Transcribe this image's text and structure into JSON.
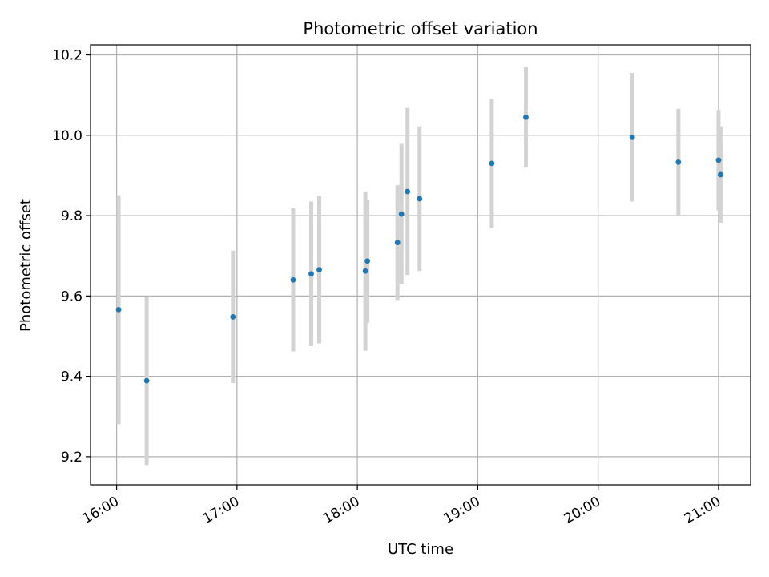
{
  "chart_data": {
    "type": "scatter",
    "title": "Photometric offset variation",
    "xlabel": "UTC time",
    "ylabel": "Photometric offset",
    "x_tick_labels": [
      "16:00",
      "17:00",
      "18:00",
      "19:00",
      "20:00",
      "21:00"
    ],
    "x_ticks": [
      "16:00",
      "17:00",
      "18:00",
      "19:00",
      "20:00",
      "21:00"
    ],
    "y_ticks": [
      9.2,
      9.4,
      9.6,
      9.8,
      10.0,
      10.2
    ],
    "y_tick_labels": [
      "9.2",
      "9.4",
      "9.6",
      "9.8",
      "10.0",
      "10.2"
    ],
    "xlim": [
      "15:47",
      "21:16"
    ],
    "ylim": [
      9.13,
      10.225
    ],
    "grid": true,
    "point_color": "#1f77b4",
    "errorbar_color": "#d3d3d3",
    "points": [
      {
        "t": "16:01",
        "y": 9.566,
        "err": 0.285
      },
      {
        "t": "16:15",
        "y": 9.389,
        "err": 0.21
      },
      {
        "t": "16:58",
        "y": 9.548,
        "err": 0.165
      },
      {
        "t": "17:28",
        "y": 9.64,
        "err": 0.178
      },
      {
        "t": "17:37",
        "y": 9.655,
        "err": 0.18
      },
      {
        "t": "17:41",
        "y": 9.665,
        "err": 0.183
      },
      {
        "t": "18:04",
        "y": 9.662,
        "err": 0.198
      },
      {
        "t": "18:05",
        "y": 9.687,
        "err": 0.153
      },
      {
        "t": "18:20",
        "y": 9.733,
        "err": 0.143
      },
      {
        "t": "18:22",
        "y": 9.804,
        "err": 0.175
      },
      {
        "t": "18:25",
        "y": 9.86,
        "err": 0.208
      },
      {
        "t": "18:31",
        "y": 9.842,
        "err": 0.18
      },
      {
        "t": "19:07",
        "y": 9.93,
        "err": 0.16
      },
      {
        "t": "19:24",
        "y": 10.045,
        "err": 0.125
      },
      {
        "t": "20:17",
        "y": 9.995,
        "err": 0.16
      },
      {
        "t": "20:40",
        "y": 9.933,
        "err": 0.133
      },
      {
        "t": "21:00",
        "y": 9.938,
        "err": 0.125
      },
      {
        "t": "21:01",
        "y": 9.902,
        "err": 0.12
      }
    ]
  }
}
